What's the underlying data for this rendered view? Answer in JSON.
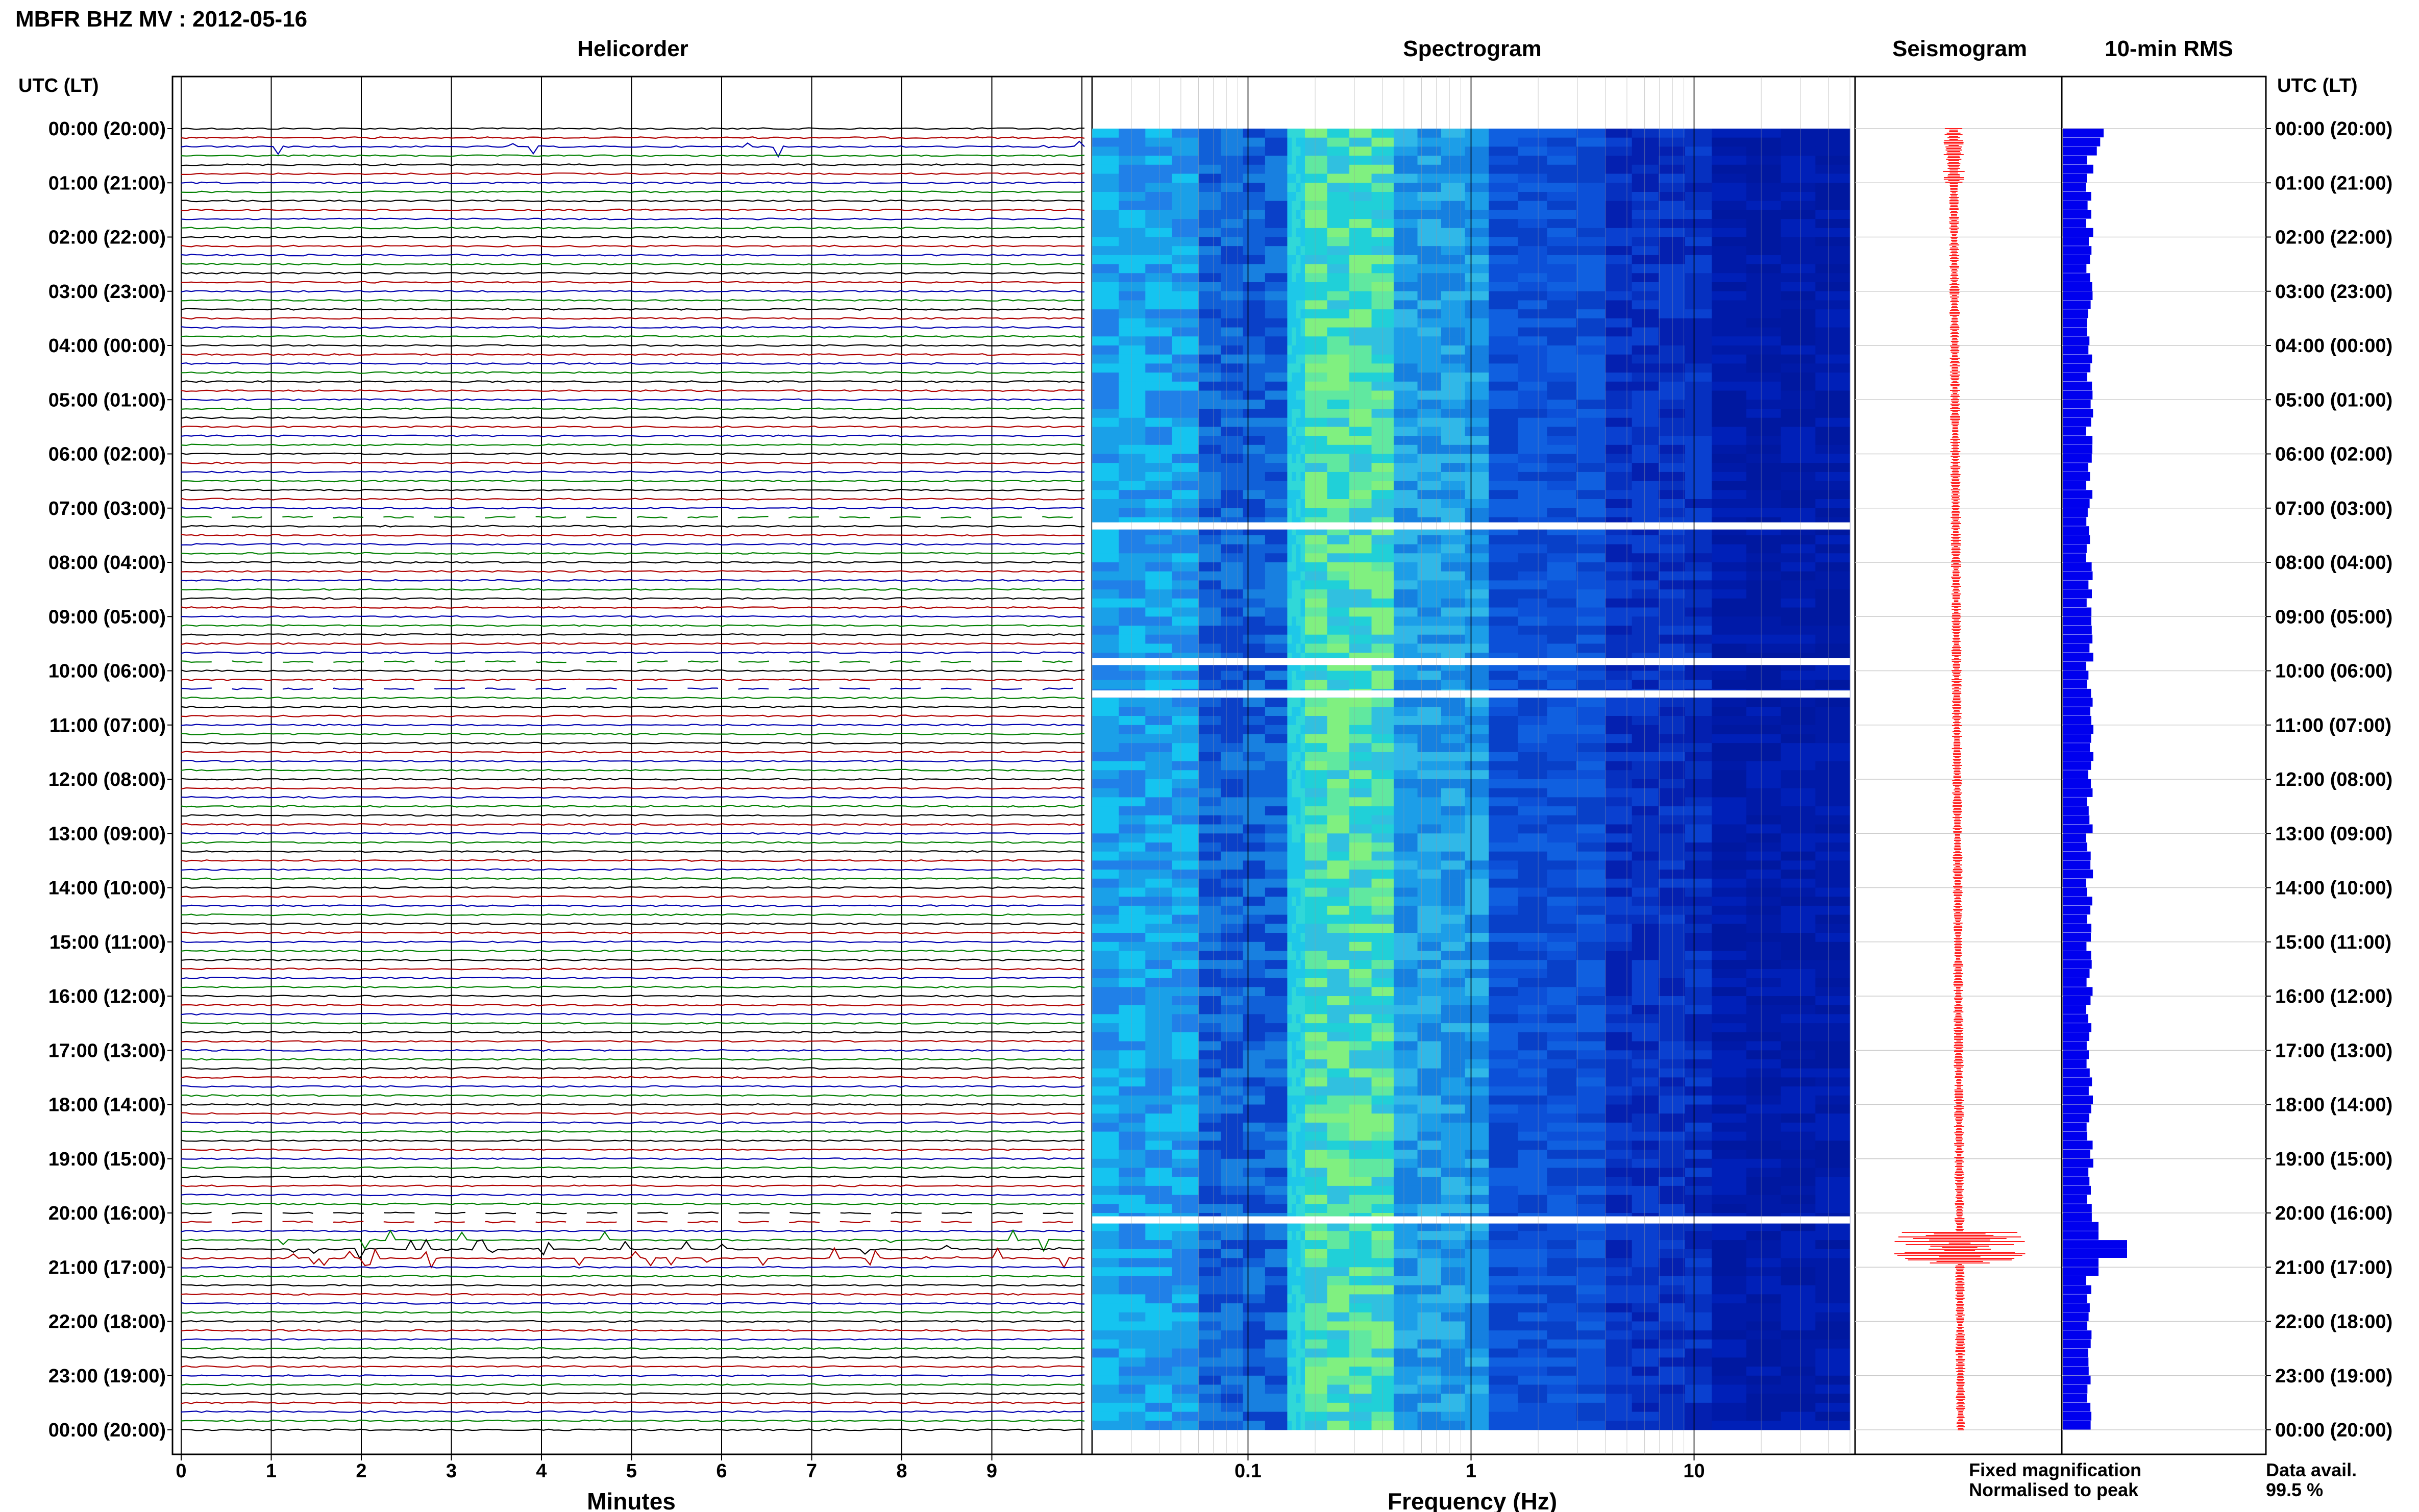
{
  "title": "MBFR BHZ MV : 2012-05-16",
  "panels": {
    "helicorder": "Helicorder",
    "spectrogram": "Spectrogram",
    "seismogram": "Seismogram",
    "rms": "10-min RMS"
  },
  "time_axis_label": "UTC (LT)",
  "time_labels": [
    "00:00 (20:00)",
    "01:00 (21:00)",
    "02:00 (22:00)",
    "03:00 (23:00)",
    "04:00 (00:00)",
    "05:00 (01:00)",
    "06:00 (02:00)",
    "07:00 (03:00)",
    "08:00 (04:00)",
    "09:00 (05:00)",
    "10:00 (06:00)",
    "11:00 (07:00)",
    "12:00 (08:00)",
    "13:00 (09:00)",
    "14:00 (10:00)",
    "15:00 (11:00)",
    "16:00 (12:00)",
    "17:00 (13:00)",
    "18:00 (14:00)",
    "19:00 (15:00)",
    "20:00 (16:00)",
    "21:00 (17:00)",
    "22:00 (18:00)",
    "23:00 (19:00)",
    "00:00 (20:00)"
  ],
  "legend": {
    "fixed": "Fixed magnification",
    "normalised": "Normalised to peak",
    "fixed_color": "#1010ff",
    "normalised_color": "#ff1010"
  },
  "data_avail_label": "Data avail.",
  "data_avail_value": "99.5 %",
  "colors": {
    "trace_cycle": [
      "#000000",
      "#b00000",
      "#0000b0",
      "#008000"
    ],
    "rms_bar": "#0000ee",
    "seismogram": "#ff2020"
  },
  "chart_data": [
    {
      "type": "line",
      "title": "Helicorder",
      "xlabel": "Minutes",
      "x_ticks": [
        "0",
        "1",
        "2",
        "3",
        "4",
        "5",
        "6",
        "7",
        "8",
        "9"
      ],
      "xlim": [
        0,
        10
      ],
      "traces_per_hour": 6,
      "gaps_hours": [
        7.2,
        9.8,
        10.3,
        20.1
      ],
      "events_hours": [
        0.3,
        20.5,
        20.6,
        20.75,
        20.9
      ]
    },
    {
      "type": "heatmap",
      "title": "Spectrogram",
      "xlabel": "Frequency (Hz)",
      "x_scale": "log",
      "x_ticks": [
        "0.1",
        "1",
        "10"
      ],
      "xlim": [
        0.02,
        50
      ],
      "gaps_hours": [
        7.3,
        9.8,
        10.4,
        20.1
      ]
    },
    {
      "type": "line",
      "title": "Seismogram",
      "legend": [
        "Fixed magnification",
        "Normalised to peak"
      ],
      "peak_hour": 20.65
    },
    {
      "type": "bar",
      "title": "10-min RMS",
      "bin_minutes": 10,
      "ylim_hours": [
        0,
        24
      ],
      "peaks": [
        {
          "hour": 0.0,
          "relative": 1.0
        },
        {
          "hour": 20.6,
          "relative": 1.1
        }
      ]
    }
  ]
}
